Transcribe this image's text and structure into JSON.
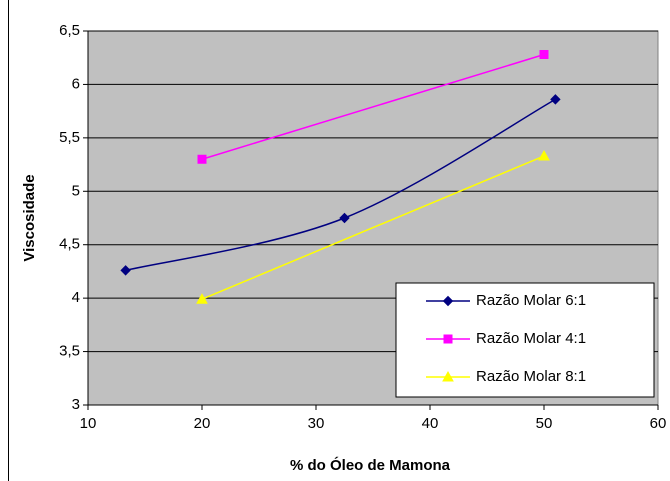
{
  "chart_data": {
    "type": "line",
    "xlabel": "% do Óleo de Mamona",
    "ylabel": "Viscosidade",
    "xlim": [
      10,
      60
    ],
    "xticks": [
      10,
      20,
      30,
      40,
      50,
      60
    ],
    "ylim": [
      3,
      6.5
    ],
    "yticks": [
      3,
      {
        "value": 3.5,
        "label": "3,5"
      },
      4,
      {
        "value": 4.5,
        "label": "4,5"
      },
      5,
      {
        "value": 5.5,
        "label": "5,5"
      },
      6,
      {
        "value": 6.5,
        "label": "6,5"
      }
    ],
    "grid": true,
    "legend": "lower right",
    "series": [
      {
        "name": "Razão Molar 6:1",
        "color": "#000080",
        "marker": "diamond",
        "smooth": true,
        "x": [
          13.3,
          32.5,
          51
        ],
        "values": [
          4.26,
          4.75,
          5.86
        ]
      },
      {
        "name": "Razão Molar 4:1",
        "color": "#ff00ff",
        "marker": "square",
        "smooth": false,
        "x": [
          20,
          50
        ],
        "values": [
          5.3,
          6.28
        ]
      },
      {
        "name": "Razão Molar 8:1",
        "color": "#ffff00",
        "marker": "triangle",
        "smooth": false,
        "x": [
          20,
          50
        ],
        "values": [
          3.99,
          5.33
        ]
      }
    ]
  }
}
